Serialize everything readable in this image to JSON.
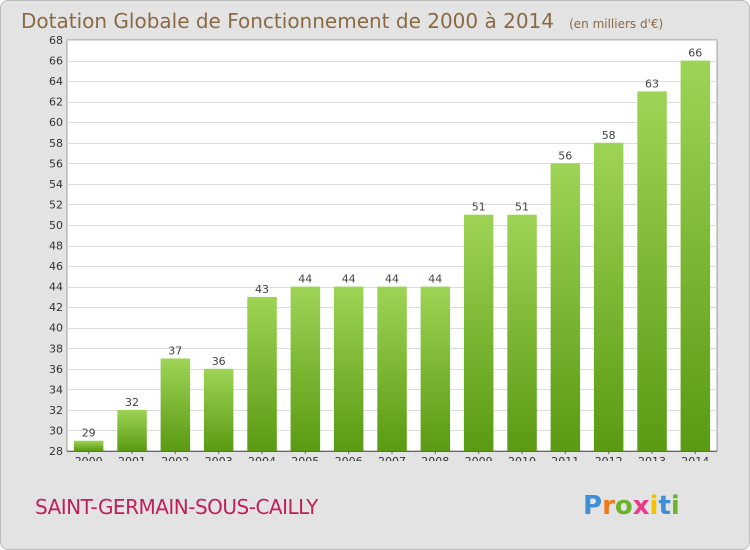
{
  "header": {
    "title": "Dotation Globale de Fonctionnement de 2000 à 2014",
    "unit": "(en milliers d'€)"
  },
  "footer": {
    "commune": "SAINT-GERMAIN-SOUS-CAILLY",
    "logo_text": "Proxiti"
  },
  "colors": {
    "background": "#e3e3e3",
    "plot_background": "#ffffff",
    "bar_top": "#9ed455",
    "bar_bottom": "#5a9a12",
    "title": "#8a6a44",
    "commune": "#c0205a",
    "logo_letters": [
      "#3f8fd6",
      "#f07a1a",
      "#6ab42a",
      "#e83a8a",
      "#f0c400",
      "#3f8fd6",
      "#6ab42a"
    ]
  },
  "chart_data": {
    "type": "bar",
    "title": "Dotation Globale de Fonctionnement de 2000 à 2014",
    "subtitle": "(en milliers d'€)",
    "xlabel": "",
    "ylabel": "",
    "categories": [
      "2000",
      "2001",
      "2002",
      "2003",
      "2004",
      "2005",
      "2006",
      "2007",
      "2008",
      "2009",
      "2010",
      "2011",
      "2012",
      "2013",
      "2014"
    ],
    "values": [
      29,
      32,
      37,
      36,
      43,
      44,
      44,
      44,
      44,
      51,
      51,
      56,
      58,
      63,
      66
    ],
    "data_labels": [
      "29",
      "32",
      "37",
      "36",
      "43",
      "44",
      "44",
      "44",
      "44",
      "51",
      "51",
      "56",
      "58",
      "63",
      "66"
    ],
    "ylim": [
      28,
      68
    ],
    "yticks": [
      "28",
      "30",
      "32",
      "34",
      "36",
      "38",
      "40",
      "42",
      "44",
      "46",
      "48",
      "50",
      "52",
      "54",
      "56",
      "58",
      "60",
      "62",
      "64",
      "66",
      "68"
    ],
    "grid": true,
    "legend": "none"
  }
}
